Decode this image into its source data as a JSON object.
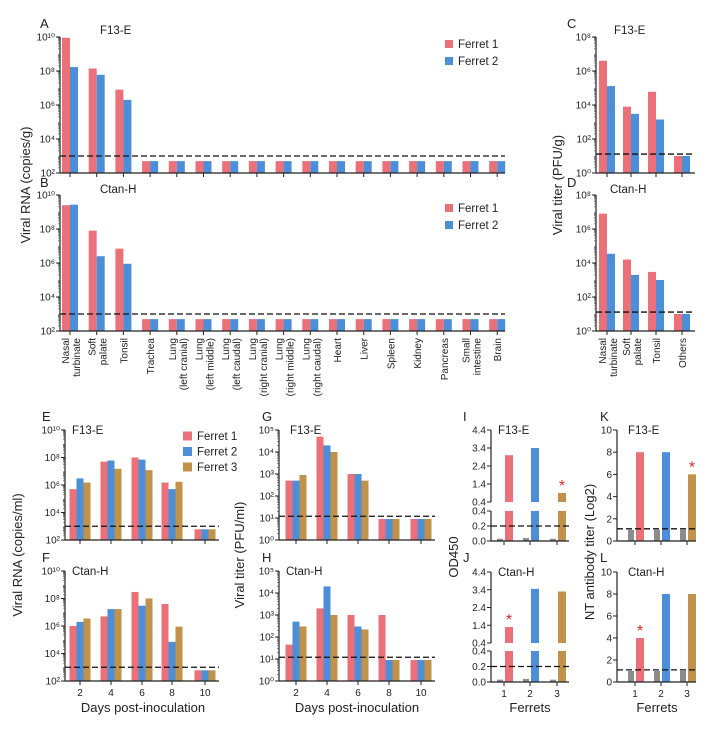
{
  "colors": {
    "ferret1": "#ec7078",
    "ferret2": "#4c8fd8",
    "ferret3": "#c1924a",
    "baseline": "#8c8c8c",
    "star": "#e02828",
    "threshold": "#111111"
  },
  "chart_data": [
    {
      "id": "A",
      "letter": "A",
      "type": "bar",
      "title": "F13-E",
      "ylabel": "Viral RNA (copies/g)",
      "yscale": "log",
      "ylim": [
        100,
        10000000000.0
      ],
      "yticks": [
        100,
        10000,
        1000000.0,
        100000000.0,
        10000000000.0
      ],
      "ytick_labels": [
        "10²",
        "10⁴",
        "10⁶",
        "10⁸",
        "10¹⁰"
      ],
      "threshold": 1000,
      "legend": "top-right",
      "categories": [
        "Nasal turbinate",
        "Soft palate",
        "Tonsil",
        "Trachea",
        "Lung (left cranial)",
        "Lung (left middle)",
        "Lung (left caudal)",
        "Lung (right cranial)",
        "Lung (right middle)",
        "Lung (right caudal)",
        "Heart",
        "Liver",
        "Spleen",
        "Kidney",
        "Pancreas",
        "Small intestine",
        "Brain"
      ],
      "series": [
        {
          "name": "Ferret 1",
          "color": "#ec7078",
          "values": [
            9000000000.0,
            140000000.0,
            8000000.0,
            500,
            500,
            500,
            500,
            500,
            500,
            500,
            500,
            500,
            500,
            500,
            500,
            500,
            500
          ]
        },
        {
          "name": "Ferret 2",
          "color": "#4c8fd8",
          "values": [
            170000000.0,
            60000000.0,
            2000000.0,
            500,
            500,
            500,
            500,
            500,
            500,
            500,
            500,
            500,
            500,
            500,
            500,
            500,
            500
          ]
        }
      ]
    },
    {
      "id": "B",
      "letter": "B",
      "type": "bar",
      "title": "Ctan-H",
      "yscale": "log",
      "ylim": [
        100,
        10000000000.0
      ],
      "yticks": [
        100,
        10000,
        1000000.0,
        100000000.0,
        10000000000.0
      ],
      "ytick_labels": [
        "10²",
        "10⁴",
        "10⁶",
        "10⁸",
        "10¹⁰"
      ],
      "threshold": 1000,
      "legend": "top-right",
      "categories": [
        [
          "Nasal",
          "turbinate"
        ],
        [
          "Soft",
          "palate"
        ],
        [
          "Tonsil"
        ],
        [
          "Trachea"
        ],
        [
          "Lung",
          "(left cranial)"
        ],
        [
          "Lung",
          "(left middle)"
        ],
        [
          "Lung",
          "(left caudal)"
        ],
        [
          "Lung",
          "(right cranial)"
        ],
        [
          "Lung",
          "(right middle)"
        ],
        [
          "Lung",
          "(right caudal)"
        ],
        [
          "Heart"
        ],
        [
          "Liver"
        ],
        [
          "Spleen"
        ],
        [
          "Kidney"
        ],
        [
          "Pancreas"
        ],
        [
          "Small",
          "intestine"
        ],
        [
          "Brain"
        ]
      ],
      "series": [
        {
          "name": "Ferret 1",
          "color": "#ec7078",
          "values": [
            2500000000.0,
            80000000.0,
            7000000.0,
            500,
            500,
            500,
            500,
            500,
            500,
            500,
            500,
            500,
            500,
            500,
            500,
            500,
            500
          ]
        },
        {
          "name": "Ferret 2",
          "color": "#4c8fd8",
          "values": [
            2700000000.0,
            2500000.0,
            900000.0,
            500,
            500,
            500,
            500,
            500,
            500,
            500,
            500,
            500,
            500,
            500,
            500,
            500,
            500
          ]
        }
      ]
    },
    {
      "id": "C",
      "letter": "C",
      "type": "bar",
      "title": "F13-E",
      "ylabel": "Viral titer (PFU/g)",
      "yscale": "log",
      "ylim": [
        1,
        100000000.0
      ],
      "yticks": [
        1,
        100,
        10000,
        1000000.0,
        100000000.0
      ],
      "ytick_labels": [
        "10⁰",
        "10²",
        "10⁴",
        "10⁶",
        "10⁸"
      ],
      "threshold": 13,
      "categories": [
        "Nasal turbinate",
        "Soft palate",
        "Tonsil",
        "Others"
      ],
      "series": [
        {
          "name": "Ferret 1",
          "color": "#ec7078",
          "values": [
            4000000.0,
            8000,
            60000,
            10
          ]
        },
        {
          "name": "Ferret 2",
          "color": "#4c8fd8",
          "values": [
            130000,
            3000,
            1400,
            10
          ]
        }
      ]
    },
    {
      "id": "D",
      "letter": "D",
      "type": "bar",
      "title": "Ctan-H",
      "yscale": "log",
      "ylim": [
        1,
        100000000.0
      ],
      "yticks": [
        1,
        100,
        10000,
        1000000.0,
        100000000.0
      ],
      "ytick_labels": [
        "10⁰",
        "10²",
        "10⁴",
        "10⁶",
        "10⁸"
      ],
      "threshold": 13,
      "categories": [
        [
          "Nasal",
          "turbinate"
        ],
        [
          "Soft",
          "palate"
        ],
        [
          "Tonsil"
        ],
        [
          "Others"
        ]
      ],
      "series": [
        {
          "name": "Ferret 1",
          "color": "#ec7078",
          "values": [
            8000000.0,
            16000,
            3000,
            10
          ]
        },
        {
          "name": "Ferret 2",
          "color": "#4c8fd8",
          "values": [
            35000,
            2000,
            1000,
            10
          ]
        }
      ]
    },
    {
      "id": "E",
      "letter": "E",
      "type": "bar",
      "title": "F13-E",
      "ylabel": "Viral RNA (copies/ml)",
      "yscale": "log",
      "ylim": [
        100,
        10000000000.0
      ],
      "yticks": [
        100,
        10000,
        1000000.0,
        100000000.0,
        10000000000.0
      ],
      "ytick_labels": [
        "10²",
        "10⁴",
        "10⁶",
        "10⁸",
        "10¹⁰"
      ],
      "threshold": 1000,
      "legend": "top-right",
      "categories": [
        "2",
        "4",
        "6",
        "8",
        "10"
      ],
      "series": [
        {
          "name": "Ferret 1",
          "color": "#ec7078",
          "values": [
            500000.0,
            50000000.0,
            100000000.0,
            1500000.0,
            600
          ]
        },
        {
          "name": "Ferret 2",
          "color": "#4c8fd8",
          "values": [
            3000000.0,
            60000000.0,
            70000000.0,
            500000.0,
            600
          ]
        },
        {
          "name": "Ferret 3",
          "color": "#c1924a",
          "values": [
            1500000.0,
            15000000.0,
            12000000.0,
            1700000.0,
            600
          ]
        }
      ]
    },
    {
      "id": "F",
      "letter": "F",
      "type": "bar",
      "title": "Ctan-H",
      "xlabel": "Days post-inoculation",
      "yscale": "log",
      "ylim": [
        100,
        10000000000.0
      ],
      "yticks": [
        100,
        10000,
        1000000.0,
        100000000.0,
        10000000000.0
      ],
      "ytick_labels": [
        "10²",
        "10⁴",
        "10⁶",
        "10⁸",
        "10¹⁰"
      ],
      "threshold": 1000,
      "categories": [
        "2",
        "4",
        "6",
        "8",
        "10"
      ],
      "series": [
        {
          "name": "Ferret 1",
          "color": "#ec7078",
          "values": [
            1000000.0,
            5000000.0,
            300000000.0,
            40000000.0,
            600
          ]
        },
        {
          "name": "Ferret 2",
          "color": "#4c8fd8",
          "values": [
            2000000.0,
            17000000.0,
            30000000.0,
            70000.0,
            600
          ]
        },
        {
          "name": "Ferret 3",
          "color": "#c1924a",
          "values": [
            3500000.0,
            17000000.0,
            100000000.0,
            900000.0,
            600
          ]
        }
      ]
    },
    {
      "id": "G",
      "letter": "G",
      "type": "bar",
      "title": "F13-E",
      "ylabel": "Viral titer (PFU/ml)",
      "yscale": "log",
      "ylim": [
        1,
        100000.0
      ],
      "yticks": [
        1,
        10,
        100,
        1000,
        10000,
        100000.0
      ],
      "ytick_labels": [
        "10⁰",
        "10¹",
        "10²",
        "10³",
        "10⁴",
        "10⁵"
      ],
      "threshold": 12,
      "categories": [
        "2",
        "4",
        "6",
        "8",
        "10"
      ],
      "series": [
        {
          "name": "Ferret 1",
          "color": "#ec7078",
          "values": [
            500,
            50000,
            1000,
            9,
            9
          ]
        },
        {
          "name": "Ferret 2",
          "color": "#4c8fd8",
          "values": [
            500,
            20000,
            1000,
            9,
            9
          ]
        },
        {
          "name": "Ferret 3",
          "color": "#c1924a",
          "values": [
            900,
            10000,
            500,
            9,
            9
          ]
        }
      ]
    },
    {
      "id": "H",
      "letter": "H",
      "type": "bar",
      "title": "Ctan-H",
      "xlabel": "Days post-inoculation",
      "yscale": "log",
      "ylim": [
        1,
        100000.0
      ],
      "yticks": [
        1,
        10,
        100,
        1000,
        10000,
        100000.0
      ],
      "ytick_labels": [
        "10⁰",
        "10¹",
        "10²",
        "10³",
        "10⁴",
        "10⁵"
      ],
      "threshold": 12,
      "categories": [
        "2",
        "4",
        "6",
        "8",
        "10"
      ],
      "series": [
        {
          "name": "Ferret 1",
          "color": "#ec7078",
          "values": [
            45,
            2000,
            1000,
            1000,
            9
          ]
        },
        {
          "name": "Ferret 2",
          "color": "#4c8fd8",
          "values": [
            500,
            20000,
            300,
            9,
            9
          ]
        },
        {
          "name": "Ferret 3",
          "color": "#c1924a",
          "values": [
            300,
            1000,
            220,
            9,
            9
          ]
        }
      ]
    },
    {
      "id": "I",
      "letter": "I",
      "type": "bar",
      "title": "F13-E",
      "ylabel": "OD450",
      "yscale": "broken-linear",
      "ylim": [
        0,
        4.4
      ],
      "axis_break": 0.4,
      "yticks_lower": [
        0,
        0.2,
        0.4
      ],
      "ytick_labels_lower": [
        "0.0",
        "0.2",
        "0.4"
      ],
      "yticks": [
        0.4,
        1.4,
        2.4,
        3.4,
        4.4
      ],
      "ytick_labels": [
        "0.4",
        "1.4",
        "2.4",
        "3.4",
        "4.4"
      ],
      "threshold": 0.2,
      "categories": [
        "1",
        "2",
        "3"
      ],
      "baseline_values": [
        0.03,
        0.04,
        0.03
      ],
      "values": [
        3.0,
        3.4,
        0.9
      ],
      "value_colors": [
        "#ec7078",
        "#4c8fd8",
        "#c1924a"
      ],
      "star": [
        false,
        false,
        true
      ],
      "star_label": "*"
    },
    {
      "id": "J",
      "letter": "J",
      "type": "bar",
      "title": "Ctan-H",
      "xlabel": "Ferrets",
      "yscale": "broken-linear",
      "ylim": [
        0,
        4.4
      ],
      "axis_break": 0.4,
      "yticks_lower": [
        0,
        0.2,
        0.4
      ],
      "ytick_labels_lower": [
        "0.0",
        "0.2",
        "0.4"
      ],
      "yticks": [
        0.4,
        1.4,
        2.4,
        3.4,
        4.4
      ],
      "ytick_labels": [
        "0.4",
        "1.4",
        "2.4",
        "3.4",
        "4.4"
      ],
      "threshold": 0.2,
      "categories": [
        "1",
        "2",
        "3"
      ],
      "baseline_values": [
        0.03,
        0.04,
        0.03
      ],
      "values": [
        1.3,
        3.45,
        3.3
      ],
      "value_colors": [
        "#ec7078",
        "#4c8fd8",
        "#c1924a"
      ],
      "star": [
        true,
        false,
        false
      ],
      "star_label": "*"
    },
    {
      "id": "K",
      "letter": "K",
      "type": "bar",
      "title": "F13-E",
      "ylabel": "NT antibody titer (Log2)",
      "yscale": "linear",
      "ylim": [
        0,
        10
      ],
      "yticks": [
        0,
        2,
        4,
        6,
        8,
        10
      ],
      "ytick_labels": [
        "0",
        "2",
        "4",
        "6",
        "8",
        "10"
      ],
      "threshold": 1.1,
      "categories": [
        "1",
        "2",
        "3"
      ],
      "baseline_values": [
        1,
        1,
        1
      ],
      "values": [
        8,
        8,
        6
      ],
      "value_colors": [
        "#ec7078",
        "#4c8fd8",
        "#c1924a"
      ],
      "star": [
        false,
        false,
        true
      ],
      "star_label": "*"
    },
    {
      "id": "L",
      "letter": "L",
      "type": "bar",
      "title": "Ctan-H",
      "xlabel": "Ferrets",
      "yscale": "linear",
      "ylim": [
        0,
        10
      ],
      "yticks": [
        0,
        2,
        4,
        6,
        8,
        10
      ],
      "ytick_labels": [
        "0",
        "2",
        "4",
        "6",
        "8",
        "10"
      ],
      "threshold": 1.1,
      "categories": [
        "1",
        "2",
        "3"
      ],
      "baseline_values": [
        1,
        1,
        1
      ],
      "values": [
        4,
        8,
        8
      ],
      "value_colors": [
        "#ec7078",
        "#4c8fd8",
        "#c1924a"
      ],
      "star": [
        true,
        false,
        false
      ],
      "star_label": "*"
    }
  ]
}
